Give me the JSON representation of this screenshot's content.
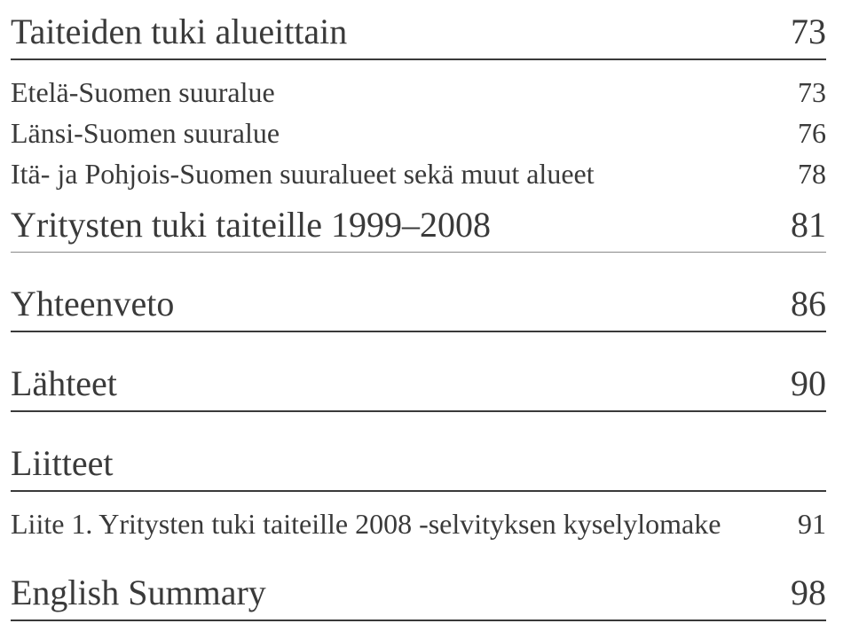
{
  "colors": {
    "text": "#3a3a3a",
    "rule_strong": "#3a3a3a",
    "rule_light": "#8a8a8a",
    "background": "#ffffff"
  },
  "typography": {
    "font_family": "Times New Roman",
    "lvl1_fontsize_pt": 30,
    "lvl2_fontsize_pt": 24
  },
  "toc": {
    "section1": {
      "title": "Taiteiden tuki alueittain",
      "page": "73",
      "items": [
        {
          "label": "Etelä-Suomen suuralue",
          "page": "73"
        },
        {
          "label": "Länsi-Suomen suuralue",
          "page": "76"
        },
        {
          "label": "Itä- ja Pohjois-Suomen suuralueet sekä muut alueet",
          "page": "78"
        }
      ],
      "subsection": {
        "title": "Yritysten tuki taiteille 1999–2008",
        "page": "81"
      }
    },
    "section2": {
      "title": "Yhteenveto",
      "page": "86"
    },
    "section3": {
      "title": "Lähteet",
      "page": "90"
    },
    "section4": {
      "title": "Liitteet",
      "items": [
        {
          "label": "Liite 1. Yritysten tuki taiteille 2008 -selvityksen kyselylomake",
          "page": "91"
        }
      ]
    },
    "section5": {
      "title": "English Summary",
      "page": "98"
    }
  }
}
